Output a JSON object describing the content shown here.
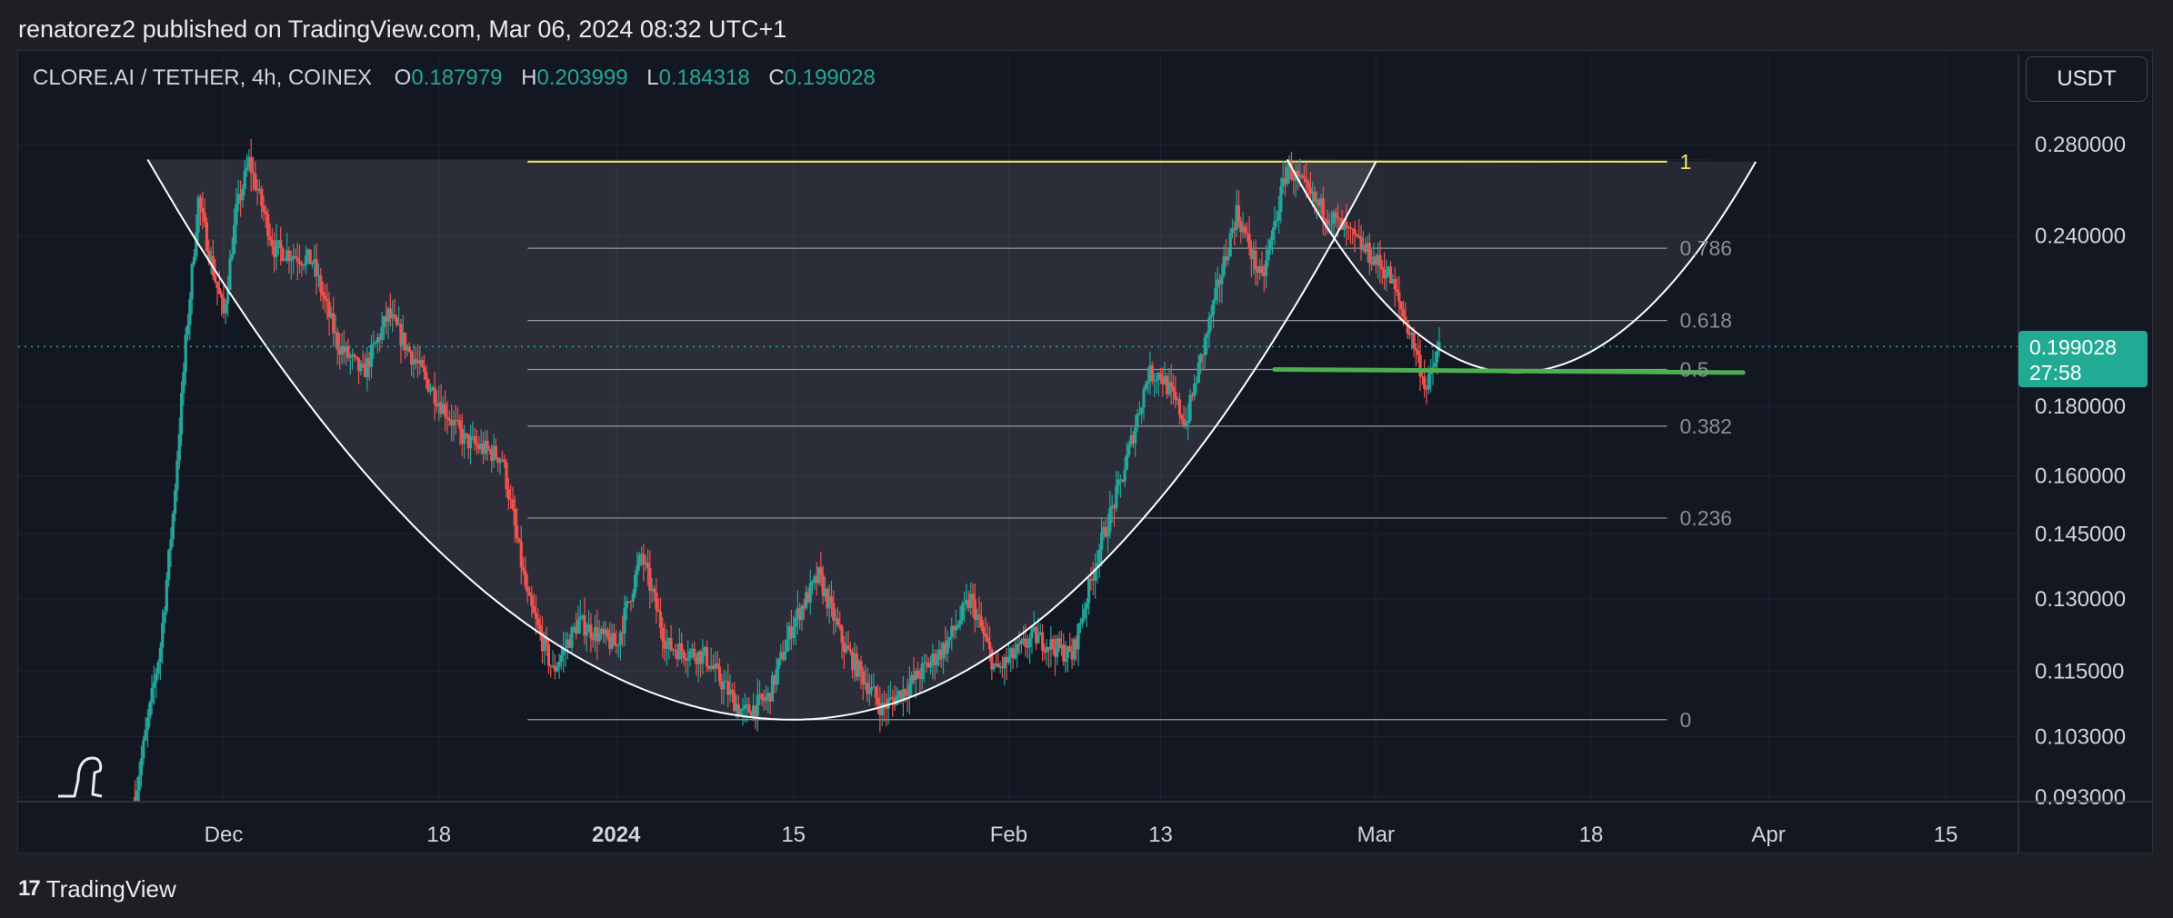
{
  "header": {
    "publisher_line": "renatorez2 published on TradingView.com, Mar 06, 2024 08:32 UTC+1"
  },
  "legend": {
    "symbol": "CLORE.AI / TETHER, 4h, COINEX",
    "o_label": "O",
    "o_value": "0.187979",
    "h_label": "H",
    "h_value": "0.203999",
    "l_label": "L",
    "l_value": "0.184318",
    "c_label": "C",
    "c_value": "0.199028"
  },
  "currency_button": {
    "label": "USDT"
  },
  "last_price": {
    "price": "0.199028",
    "countdown": "27:58"
  },
  "footer": {
    "logo_mark": "17",
    "brand": "TradingView"
  },
  "colors": {
    "background": "#131722",
    "up_candle": "#26a69a",
    "down_candle": "#ef5350",
    "fib_level_1": "#f5e663",
    "support_line": "#4caf50",
    "price_badge": "#22ab94"
  },
  "chart_data": {
    "type": "candlestick",
    "symbol": "CLORE.AI / TETHER",
    "timeframe": "4h",
    "exchange": "COINEX",
    "y_scale": "log",
    "ylim": [
      0.0925,
      0.29
    ],
    "y_ticks": [
      "0.280000",
      "0.240000",
      "0.180000",
      "0.160000",
      "0.145000",
      "0.130000",
      "0.115000",
      "0.103000",
      "0.093000"
    ],
    "y_tick_values": [
      0.28,
      0.24,
      0.18,
      0.16,
      0.145,
      0.13,
      0.115,
      0.103,
      0.093
    ],
    "x_ticks": [
      {
        "label": "Dec",
        "date": "2023-12-01",
        "bold": false
      },
      {
        "label": "18",
        "date": "2023-12-18",
        "bold": false
      },
      {
        "label": "2024",
        "date": "2024-01-01",
        "bold": true
      },
      {
        "label": "15",
        "date": "2024-01-15",
        "bold": false
      },
      {
        "label": "Feb",
        "date": "2024-02-01",
        "bold": false
      },
      {
        "label": "13",
        "date": "2024-02-13",
        "bold": false
      },
      {
        "label": "Mar",
        "date": "2024-03-01",
        "bold": false
      },
      {
        "label": "18",
        "date": "2024-03-18",
        "bold": false
      },
      {
        "label": "Apr",
        "date": "2024-04-01",
        "bold": false
      },
      {
        "label": "15",
        "date": "2024-04-15",
        "bold": false
      }
    ],
    "xlim": [
      "2023-11-16",
      "2024-04-20"
    ],
    "price_path": [
      [
        "2023-11-24",
        0.093
      ],
      [
        "2023-11-26",
        0.12
      ],
      [
        "2023-11-27",
        0.15
      ],
      [
        "2023-11-28",
        0.2
      ],
      [
        "2023-11-29",
        0.255
      ],
      [
        "2023-11-30",
        0.23
      ],
      [
        "2023-12-01",
        0.21
      ],
      [
        "2023-12-02",
        0.25
      ],
      [
        "2023-12-03",
        0.272
      ],
      [
        "2023-12-05",
        0.235
      ],
      [
        "2023-12-08",
        0.23
      ],
      [
        "2023-12-10",
        0.2
      ],
      [
        "2023-12-12",
        0.19
      ],
      [
        "2023-12-14",
        0.21
      ],
      [
        "2023-12-17",
        0.188
      ],
      [
        "2023-12-20",
        0.17
      ],
      [
        "2023-12-23",
        0.165
      ],
      [
        "2023-12-25",
        0.13
      ],
      [
        "2023-12-27",
        0.115
      ],
      [
        "2023-12-29",
        0.125
      ],
      [
        "2024-01-01",
        0.12
      ],
      [
        "2024-01-03",
        0.14
      ],
      [
        "2024-01-05",
        0.12
      ],
      [
        "2024-01-08",
        0.118
      ],
      [
        "2024-01-11",
        0.107
      ],
      [
        "2024-01-13",
        0.11
      ],
      [
        "2024-01-15",
        0.125
      ],
      [
        "2024-01-17",
        0.135
      ],
      [
        "2024-01-19",
        0.12
      ],
      [
        "2024-01-22",
        0.108
      ],
      [
        "2024-01-24",
        0.112
      ],
      [
        "2024-01-27",
        0.12
      ],
      [
        "2024-01-29",
        0.13
      ],
      [
        "2024-01-31",
        0.115
      ],
      [
        "2024-02-03",
        0.122
      ],
      [
        "2024-02-06",
        0.118
      ],
      [
        "2024-02-08",
        0.14
      ],
      [
        "2024-02-10",
        0.16
      ],
      [
        "2024-02-12",
        0.19
      ],
      [
        "2024-02-13",
        0.19
      ],
      [
        "2024-02-15",
        0.175
      ],
      [
        "2024-02-17",
        0.21
      ],
      [
        "2024-02-19",
        0.25
      ],
      [
        "2024-02-21",
        0.222
      ],
      [
        "2024-02-23",
        0.27
      ],
      [
        "2024-02-25",
        0.255
      ],
      [
        "2024-02-27",
        0.245
      ],
      [
        "2024-02-29",
        0.235
      ],
      [
        "2024-03-02",
        0.225
      ],
      [
        "2024-03-04",
        0.2
      ],
      [
        "2024-03-05",
        0.185
      ],
      [
        "2024-03-06",
        0.199
      ]
    ],
    "current_price": 0.199028,
    "fib_retracement": {
      "start_date": "2023-12-25",
      "end_date": "2024-03-24",
      "label_date": "2024-03-25",
      "levels": [
        {
          "label": "1",
          "price": 0.272
        },
        {
          "label": "0.786",
          "price": 0.235
        },
        {
          "label": "0.618",
          "price": 0.208
        },
        {
          "label": "0.5",
          "price": 0.1915
        },
        {
          "label": "0.382",
          "price": 0.174
        },
        {
          "label": "0.236",
          "price": 0.149
        },
        {
          "label": "0",
          "price": 0.106
        }
      ]
    },
    "cup_curve": {
      "start": [
        "2023-11-25",
        0.273
      ],
      "bottom": [
        "2024-01-15",
        0.106
      ],
      "end": [
        "2024-03-01",
        0.272
      ]
    },
    "handle_curve": {
      "start": [
        "2024-02-23",
        0.273
      ],
      "bottom": [
        "2024-03-12",
        0.1905
      ],
      "end": [
        "2024-03-31",
        0.272
      ]
    },
    "shaded_area": {
      "start_date": "2023-11-25",
      "end_date": "2024-03-31",
      "top_price": 0.273
    },
    "support_line": {
      "start": [
        "2024-02-22",
        0.1915
      ],
      "end": [
        "2024-03-30",
        0.1905
      ]
    }
  }
}
